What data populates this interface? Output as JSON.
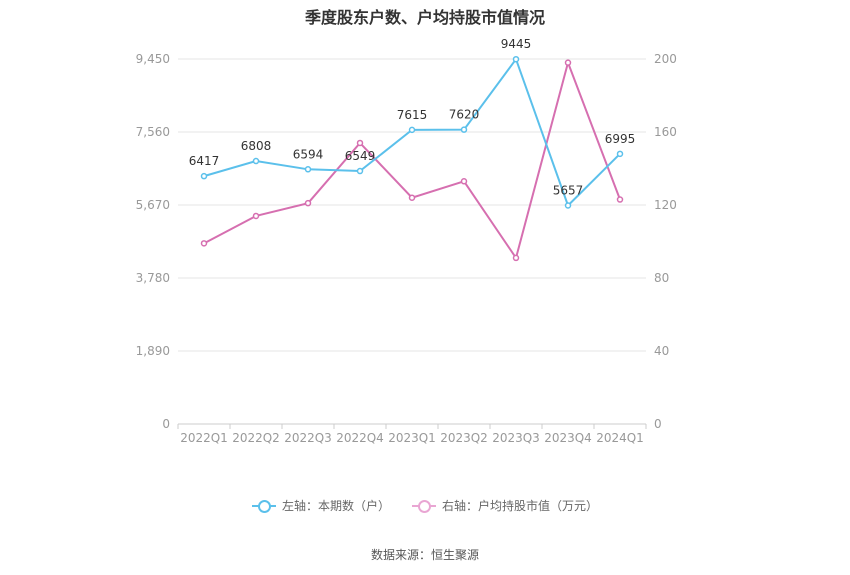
{
  "title": "季度股东户数、户均持股市值情况",
  "source": "数据来源：恒生聚源",
  "colors": {
    "left_series": "#5bc0eb",
    "right_series": "#d66fb0",
    "grid": "#e6e6e6",
    "tick": "#999999",
    "label": "#333333"
  },
  "legend": {
    "left": "左轴：本期数（户）",
    "right": "右轴：户均持股市值（万元）"
  },
  "chart_data": {
    "type": "line",
    "categories": [
      "2022Q1",
      "2022Q2",
      "2022Q3",
      "2022Q4",
      "2023Q1",
      "2023Q2",
      "2023Q3",
      "2023Q4",
      "2024Q1"
    ],
    "left_axis": {
      "ticks": [
        "0",
        "1,890",
        "3,780",
        "5,670",
        "7,560",
        "9,450"
      ],
      "ylim": [
        0,
        9450
      ]
    },
    "right_axis": {
      "ticks": [
        "0",
        "40",
        "80",
        "120",
        "160",
        "200"
      ],
      "ylim": [
        0,
        200
      ]
    },
    "grid": true,
    "legend_position": "bottom",
    "series": [
      {
        "name": "左轴：本期数（户）",
        "axis": "left",
        "values": [
          6417,
          6808,
          6594,
          6549,
          7615,
          7620,
          9445,
          5657,
          6995
        ],
        "labels": [
          "6417",
          "6808",
          "6594",
          "6549",
          "7615",
          "7620",
          "9445",
          "5657",
          "6995"
        ]
      },
      {
        "name": "右轴：户均持股市值（万元）",
        "axis": "right",
        "values": [
          99,
          114,
          121,
          154,
          124,
          133,
          91,
          198,
          123
        ]
      }
    ]
  }
}
